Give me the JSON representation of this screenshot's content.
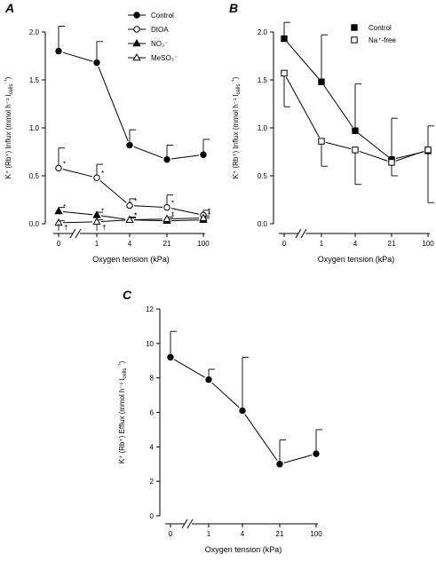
{
  "x_categories": [
    "0",
    "1",
    "4",
    "21",
    "100"
  ],
  "chart_data": [
    {
      "type": "line",
      "panel": "A",
      "xlabel": "Oxygen tension (kPa)",
      "ylabel": "K⁺ (Rb⁺) Influx (mmol h⁻¹ l",
      "ylabel_sub": "cells",
      "ylabel_sup": "⁻¹",
      "ylabel_close": ")",
      "ylim": [
        0,
        2.0
      ],
      "yticks": [
        "0.0",
        "0.5",
        "1.0",
        "1.5",
        "2.0"
      ],
      "legend_position": "top-right",
      "series": [
        {
          "name": "Control",
          "marker": "filled-circle",
          "values": [
            1.8,
            1.68,
            0.82,
            0.67,
            0.72
          ],
          "errors": [
            0.26,
            0.22,
            0.16,
            0.15,
            0.16
          ],
          "stars": [
            "",
            "",
            "",
            "",
            ""
          ]
        },
        {
          "name": "DIOA",
          "marker": "open-circle",
          "values": [
            0.58,
            0.48,
            0.19,
            0.17,
            0.09
          ],
          "errors": [
            0.21,
            0.14,
            0.07,
            0.13,
            0.05
          ],
          "stars": [
            "*",
            "*",
            "*",
            "*",
            "*"
          ]
        },
        {
          "name": "NO₃⁻",
          "marker": "filled-triangle",
          "values": [
            0.13,
            0.09,
            0.04,
            0.03,
            0.04
          ],
          "errors": [
            0.04,
            0.03,
            0.03,
            0.02,
            0.02
          ],
          "stars": [
            "*",
            "*",
            "*",
            "*",
            "*"
          ]
        },
        {
          "name": "MeSO₃⁻",
          "marker": "open-triangle",
          "values": [
            0.01,
            0.02,
            0.04,
            0.05,
            0.06
          ],
          "errors": [
            0.02,
            0.02,
            0.02,
            0.02,
            0.02
          ],
          "stars": [
            "",
            "",
            "*",
            "*",
            "*"
          ]
        }
      ],
      "dagger": "†"
    },
    {
      "type": "line",
      "panel": "B",
      "xlabel": "Oxygen tension (kPa)",
      "ylabel": "K⁺ (Rb⁺) Influx (mmol h⁻¹ l",
      "ylabel_sub": "cells",
      "ylabel_sup": "⁻¹",
      "ylabel_close": ")",
      "ylim": [
        0,
        2.0
      ],
      "yticks": [
        "0.0",
        "0.5",
        "1.0",
        "1.5",
        "2.0"
      ],
      "legend_position": "top-right",
      "series": [
        {
          "name": "Control",
          "marker": "filled-square",
          "values": [
            1.93,
            1.48,
            0.97,
            0.67,
            0.76
          ],
          "errors": [
            0.17,
            0.49,
            0.49,
            0.43,
            0.26
          ],
          "error_dir": "up"
        },
        {
          "name": "Na⁺-free",
          "marker": "open-square",
          "values": [
            1.57,
            0.86,
            0.77,
            0.64,
            0.77
          ],
          "errors": [
            0.35,
            0.26,
            0.36,
            0.14,
            0.55
          ],
          "error_dir": "down"
        }
      ]
    },
    {
      "type": "line",
      "panel": "C",
      "xlabel": "Oxygen tension (kPa)",
      "ylabel": "K⁺ (Rb⁺) Efflux (mmol h⁻¹ l",
      "ylabel_sub": "cells",
      "ylabel_sup": "⁻¹",
      "ylabel_close": ")",
      "ylim": [
        0,
        12
      ],
      "yticks": [
        "0",
        "2",
        "4",
        "6",
        "8",
        "10",
        "12"
      ],
      "series": [
        {
          "name": "",
          "marker": "filled-circle",
          "values": [
            9.2,
            7.9,
            6.1,
            3.0,
            3.6
          ],
          "errors": [
            1.5,
            0.6,
            3.1,
            1.4,
            1.4
          ],
          "error_dir": "up"
        }
      ]
    }
  ]
}
